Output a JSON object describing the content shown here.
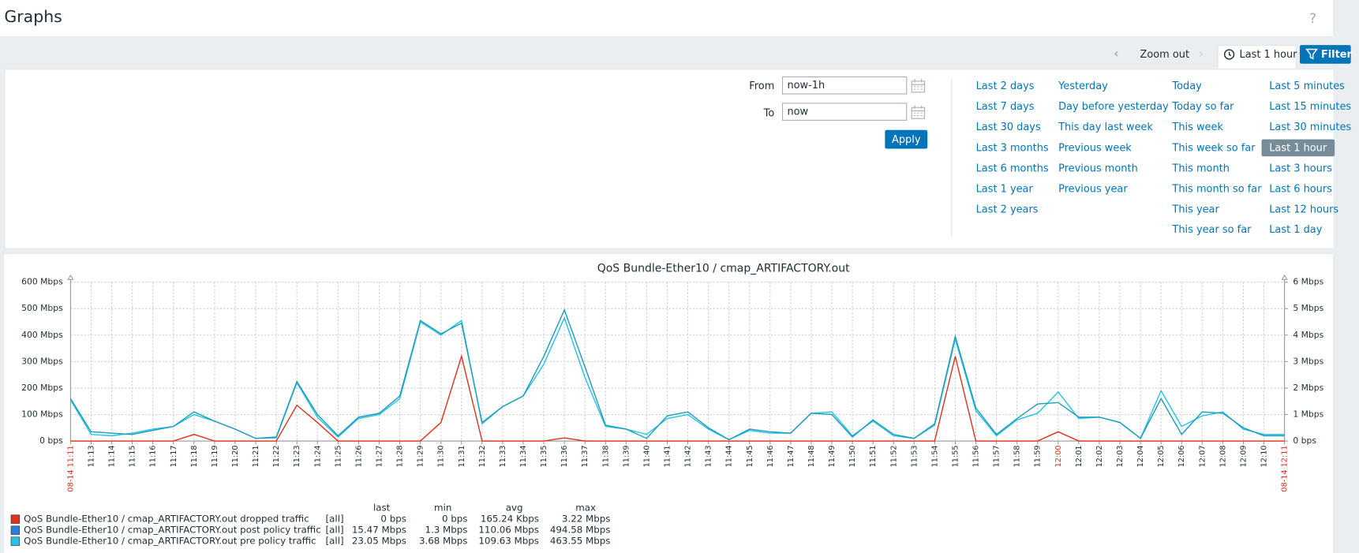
{
  "header": {
    "title": "Graphs",
    "help": "?"
  },
  "tabs": {
    "zoom_out": "Zoom out",
    "time_range": "Last 1 hour",
    "filter": "Filter"
  },
  "filter": {
    "from_label": "From",
    "from_value": "now-1h",
    "to_label": "To",
    "to_value": "now",
    "apply": "Apply",
    "quick_ranges": [
      [
        "Last 2 days",
        "Last 7 days",
        "Last 30 days",
        "Last 3 months",
        "Last 6 months",
        "Last 1 year",
        "Last 2 years"
      ],
      [
        "Yesterday",
        "Day before yesterday",
        "This day last week",
        "Previous week",
        "Previous month",
        "Previous year"
      ],
      [
        "Today",
        "Today so far",
        "This week",
        "This week so far",
        "This month",
        "This month so far",
        "This year",
        "This year so far"
      ],
      [
        "Last 5 minutes",
        "Last 15 minutes",
        "Last 30 minutes",
        "Last 1 hour",
        "Last 3 hours",
        "Last 6 hours",
        "Last 12 hours",
        "Last 1 day"
      ]
    ],
    "selected": "Last 1 hour"
  },
  "chart_data": {
    "type": "line",
    "title": "QoS Bundle-Ether10 / cmap_ARTIFACTORY.out",
    "categories": [
      "08-14 11:11",
      "11:13",
      "11:14",
      "11:15",
      "11:16",
      "11:17",
      "11:18",
      "11:19",
      "11:20",
      "11:21",
      "11:22",
      "11:23",
      "11:24",
      "11:25",
      "11:26",
      "11:27",
      "11:28",
      "11:29",
      "11:30",
      "11:31",
      "11:32",
      "11:33",
      "11:34",
      "11:35",
      "11:36",
      "11:37",
      "11:38",
      "11:39",
      "11:40",
      "11:41",
      "11:42",
      "11:43",
      "11:44",
      "11:45",
      "11:46",
      "11:47",
      "11:48",
      "11:49",
      "11:50",
      "11:51",
      "11:52",
      "11:53",
      "11:54",
      "11:55",
      "11:56",
      "11:57",
      "11:58",
      "11:59",
      "12:00",
      "12:01",
      "12:02",
      "12:03",
      "12:04",
      "12:05",
      "12:06",
      "12:07",
      "12:08",
      "12:09",
      "12:10",
      "08-14 12:11"
    ],
    "highlight_categories": [
      "08-14 11:11",
      "12:00",
      "08-14 12:11"
    ],
    "ylim": [
      0,
      600
    ],
    "yticks": [
      {
        "value": 0,
        "label": "0 bps"
      },
      {
        "value": 100,
        "label": "100 Mbps"
      },
      {
        "value": 200,
        "label": "200 Mbps"
      },
      {
        "value": 300,
        "label": "300 Mbps"
      },
      {
        "value": 400,
        "label": "400 Mbps"
      },
      {
        "value": 500,
        "label": "500 Mbps"
      },
      {
        "value": 600,
        "label": "600 Mbps"
      }
    ],
    "y2lim": [
      0,
      6
    ],
    "y2ticks": [
      {
        "value": 0,
        "label": "0 bps"
      },
      {
        "value": 1,
        "label": "1 Mbps"
      },
      {
        "value": 2,
        "label": "2 Mbps"
      },
      {
        "value": 3,
        "label": "3 Mbps"
      },
      {
        "value": 4,
        "label": "4 Mbps"
      },
      {
        "value": 5,
        "label": "5 Mbps"
      },
      {
        "value": 6,
        "label": "6 Mbps"
      }
    ],
    "grid": true,
    "stats_headers": [
      "last",
      "min",
      "avg",
      "max"
    ],
    "series": [
      {
        "name": "QoS Bundle-Ether10 / cmap_ARTIFACTORY.out dropped traffic",
        "color": "#e0301e",
        "axis": "y2",
        "function": "[all]",
        "stats": [
          "0 bps",
          "0 bps",
          "165.24 Kbps",
          "3.22 Mbps"
        ],
        "values": [
          0,
          0,
          0,
          0,
          0,
          0,
          0.25,
          0,
          0,
          0,
          0,
          1.35,
          0.7,
          0,
          0,
          0,
          0,
          0,
          0.7,
          3.2,
          0,
          0,
          0,
          0,
          0.12,
          0,
          0,
          0,
          0,
          0,
          0,
          0,
          0,
          0,
          0,
          0,
          0,
          0,
          0,
          0,
          0,
          0,
          0,
          3.2,
          0,
          0,
          0,
          0,
          0.35,
          0,
          0,
          0,
          0,
          0,
          0,
          0,
          0,
          0,
          0,
          0
        ]
      },
      {
        "name": "QoS Bundle-Ether10 / cmap_ARTIFACTORY.out post policy traffic",
        "color": "#1f9bb8",
        "legend_color": "#2a7de1",
        "function": "[all]",
        "stats": [
          "15.47 Mbps",
          "1.3 Mbps",
          "110.06 Mbps",
          "494.58 Mbps"
        ],
        "values": [
          160,
          35,
          30,
          25,
          40,
          55,
          110,
          75,
          45,
          10,
          15,
          225,
          100,
          20,
          90,
          105,
          170,
          455,
          405,
          445,
          70,
          130,
          170,
          320,
          495,
          280,
          60,
          45,
          10,
          95,
          110,
          50,
          5,
          45,
          35,
          30,
          105,
          100,
          15,
          80,
          25,
          10,
          65,
          395,
          125,
          25,
          85,
          140,
          145,
          90,
          90,
          70,
          10,
          160,
          25,
          110,
          105,
          50,
          20,
          20
        ]
      },
      {
        "name": "QoS Bundle-Ether10 / cmap_ARTIFACTORY.out pre policy traffic",
        "color": "#22c3e6",
        "function": "[all]",
        "stats": [
          "23.05 Mbps",
          "3.68 Mbps",
          "109.63 Mbps",
          "463.55 Mbps"
        ],
        "values": [
          155,
          25,
          20,
          30,
          45,
          55,
          100,
          75,
          45,
          10,
          12,
          220,
          90,
          15,
          85,
          100,
          160,
          450,
          400,
          455,
          65,
          130,
          170,
          290,
          465,
          240,
          55,
          45,
          25,
          85,
          100,
          45,
          5,
          40,
          30,
          30,
          105,
          110,
          20,
          75,
          20,
          10,
          60,
          385,
          115,
          20,
          80,
          105,
          185,
          85,
          90,
          70,
          10,
          190,
          55,
          95,
          110,
          45,
          25,
          25
        ]
      }
    ]
  }
}
